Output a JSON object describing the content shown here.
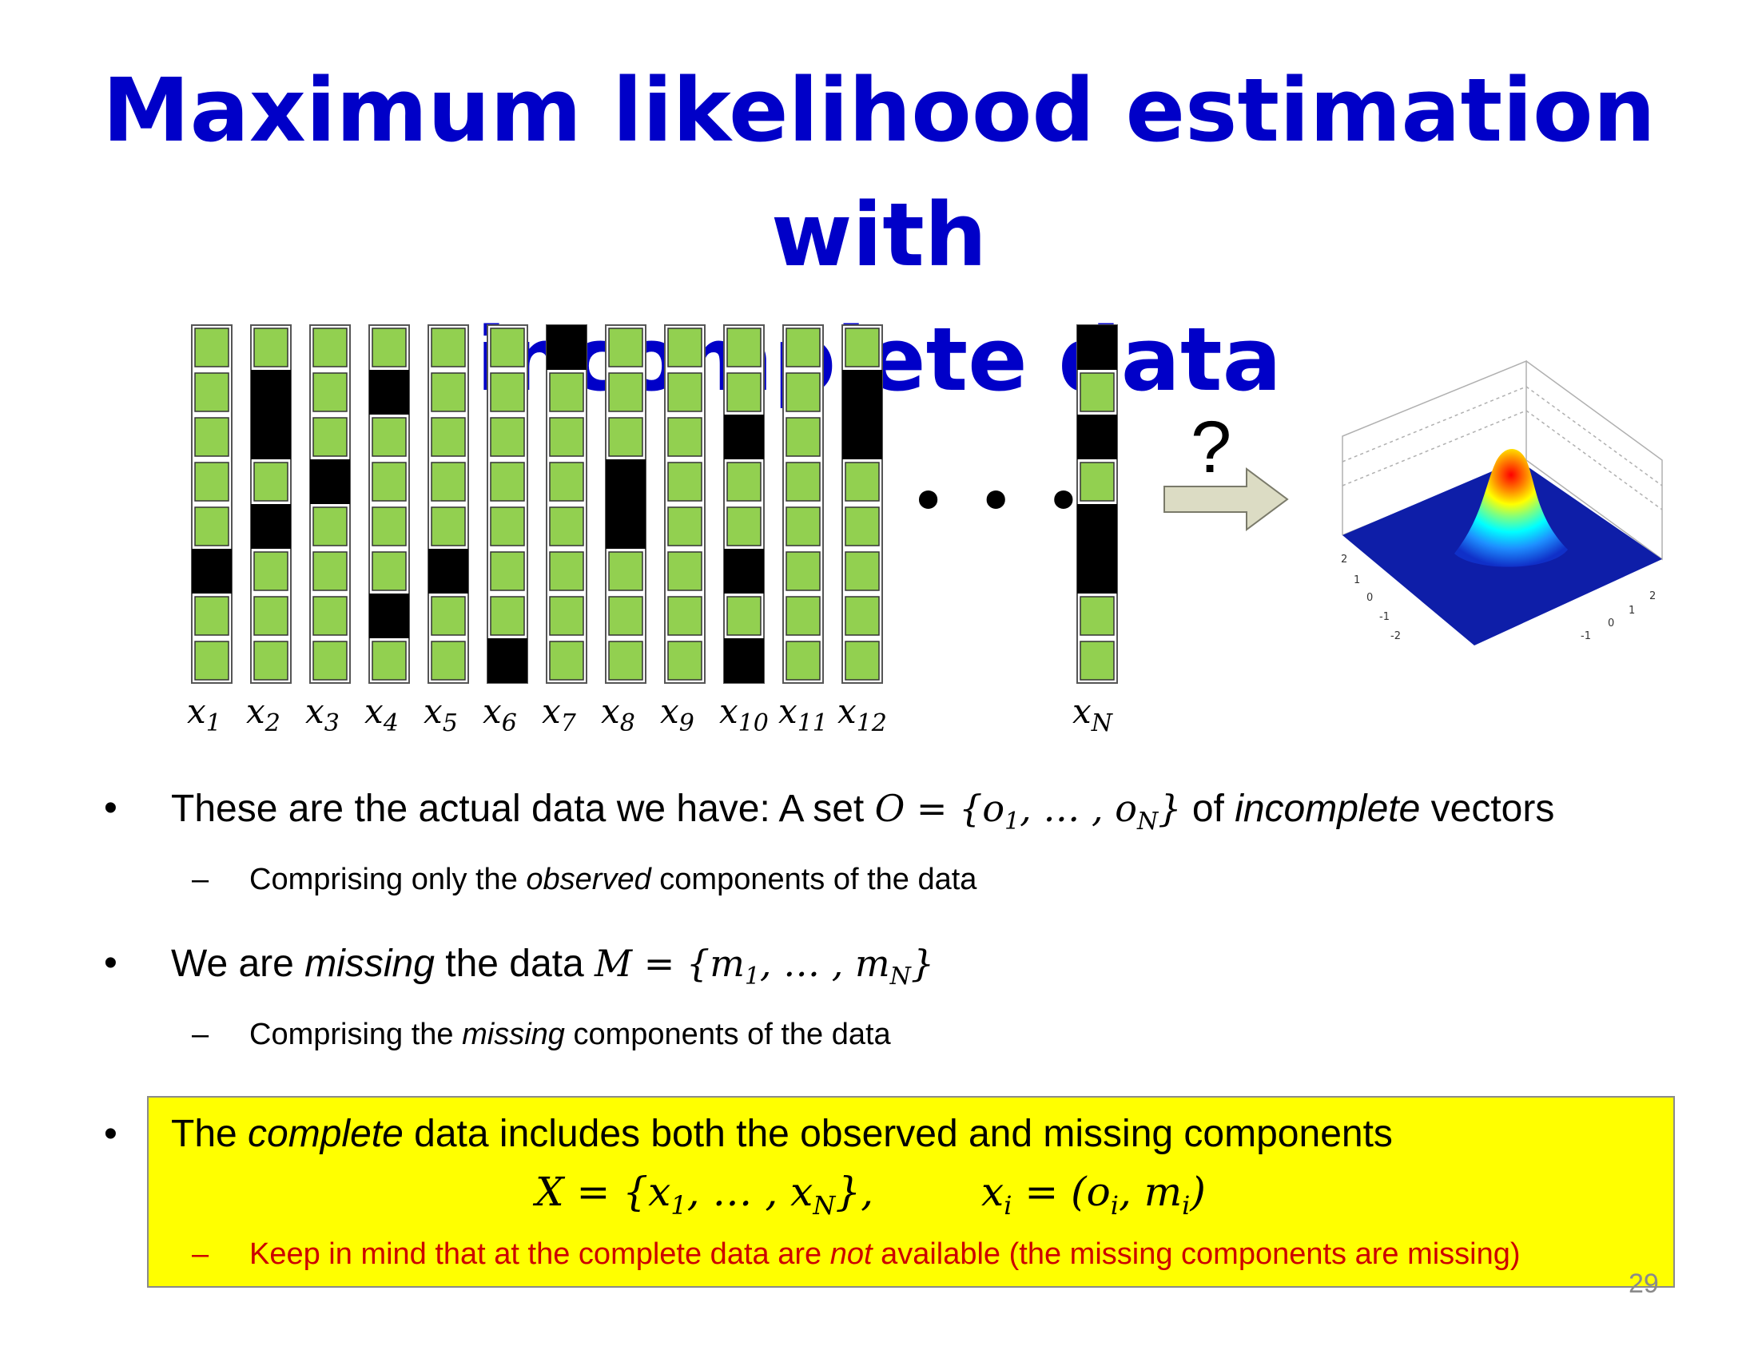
{
  "slide": {
    "title_line1": "Maximum likelihood estimation with",
    "title_line2": "incomplete data",
    "page_number": "29"
  },
  "figure": {
    "vector_labels": [
      "x",
      "x",
      "x",
      "x",
      "x",
      "x",
      "x",
      "x",
      "x",
      "x",
      "x",
      "x",
      "x"
    ],
    "vector_subscripts": [
      "1",
      "2",
      "3",
      "4",
      "5",
      "6",
      "7",
      "8",
      "9",
      "10",
      "11",
      "12",
      "N"
    ],
    "observed_color": "#92d050",
    "missing_color": "#000000",
    "vector_patterns": [
      "OOOOOMOO",
      "OMMOMOOO",
      "OOOMOOOO",
      "OMOOOOMO",
      "OOOOOMOO",
      "OOOOOOOM",
      "MOOOOOOO",
      "OOOMMOOO",
      "OOOOOOOO",
      "OOMOOMOM",
      "OOOOOOOO",
      "OMMOOOOO",
      "MOMOMMOO"
    ],
    "ellipsis": "• • •",
    "question_mark": "?",
    "arrow_color": "#dcdcc4",
    "gaussian_plot": {
      "type": "3d-surface",
      "tick_labels": [
        "2",
        "1",
        "0",
        "-1",
        "-2",
        "2",
        "1",
        "0",
        "-1"
      ],
      "colormap": "jet"
    }
  },
  "bullets": [
    {
      "marker": "•",
      "text_before": "These are the actual data we have:  A set ",
      "math": "O = {o",
      "math_sub1": "1",
      "math_mid": ", … , o",
      "math_sub2": "N",
      "math_end": "}",
      "text_after_1": " of ",
      "emphasis": "incomplete",
      "text_after_2": " vectors",
      "sub": {
        "marker": "–",
        "text_before": "Comprising only the ",
        "emphasis": "observed",
        "text_after": " components of the data"
      }
    },
    {
      "marker": "•",
      "text_before": "We are ",
      "emphasis": "missing",
      "text_mid": " the data ",
      "math": "M = {m",
      "math_sub1": "1",
      "math_mid": ", … , m",
      "math_sub2": "N",
      "math_end": "}",
      "sub": {
        "marker": "–",
        "text_before": "Comprising the ",
        "emphasis": "missing",
        "text_after": " components of the data"
      }
    },
    {
      "marker": "•",
      "text_before": "The ",
      "emphasis": "complete",
      "text_after": " data includes both the observed and missing components",
      "formula_left": {
        "a": "X = {x",
        "s1": "1",
        "b": ", … , x",
        "s2": "N",
        "c": "},"
      },
      "formula_right": {
        "a": "x",
        "s1": "i",
        "b": " = (o",
        "s2": "i",
        "c": ", m",
        "s3": "i",
        "d": ")"
      },
      "sub": {
        "marker": "–",
        "text_before": "Keep in mind that at the complete data are ",
        "emphasis": "not",
        "text_after": " available (the missing components are missing)",
        "color": "#cc0000"
      }
    }
  ]
}
